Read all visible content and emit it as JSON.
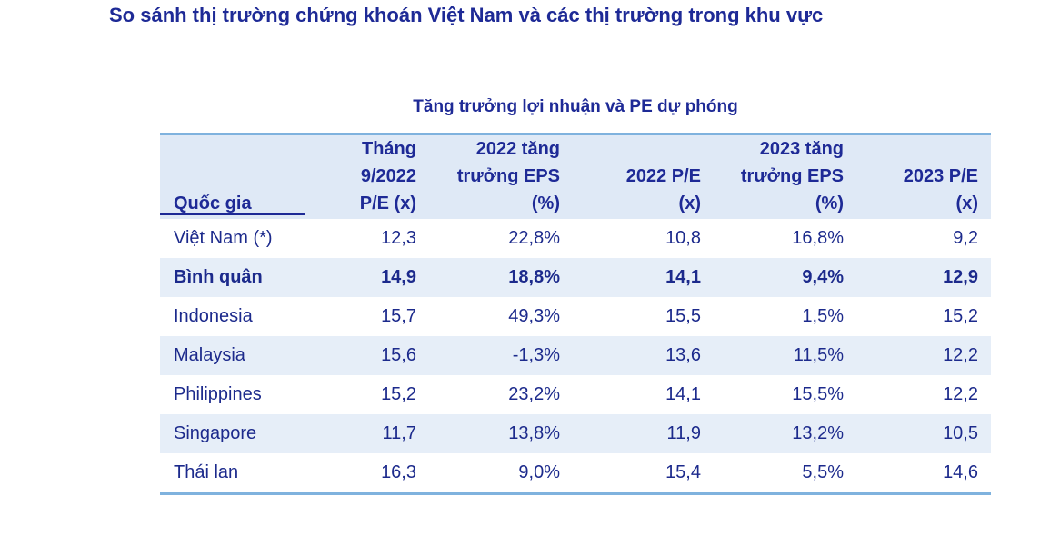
{
  "page": {
    "title": "So sánh thị trường chứng khoán Việt Nam và các thị trường trong khu vực"
  },
  "table": {
    "title": "Tăng trưởng lợi nhuận và PE dự phóng",
    "headers": [
      [
        "Quốc gia"
      ],
      [
        "Tháng",
        "9/2022",
        "P/E (x)"
      ],
      [
        "2022 tăng",
        "trưởng EPS",
        "(%)"
      ],
      [
        "2022 P/E",
        "(x)"
      ],
      [
        "2023 tăng",
        "trưởng EPS",
        "(%)"
      ],
      [
        "2023 P/E",
        "(x)"
      ]
    ],
    "rows": [
      {
        "country": "Việt Nam (*)",
        "pe_sep2022": "12,3",
        "eps_growth_2022": "22,8%",
        "pe_2022": "10,8",
        "eps_growth_2023": "16,8%",
        "pe_2023": "9,2"
      },
      {
        "country": "Bình quân",
        "pe_sep2022": "14,9",
        "eps_growth_2022": "18,8%",
        "pe_2022": "14,1",
        "eps_growth_2023": "9,4%",
        "pe_2023": "12,9"
      },
      {
        "country": "Indonesia",
        "pe_sep2022": "15,7",
        "eps_growth_2022": "49,3%",
        "pe_2022": "15,5",
        "eps_growth_2023": "1,5%",
        "pe_2023": "15,2"
      },
      {
        "country": "Malaysia",
        "pe_sep2022": "15,6",
        "eps_growth_2022": "-1,3%",
        "pe_2022": "13,6",
        "eps_growth_2023": "11,5%",
        "pe_2023": "12,2"
      },
      {
        "country": "Philippines",
        "pe_sep2022": "15,2",
        "eps_growth_2022": "23,2%",
        "pe_2022": "14,1",
        "eps_growth_2023": "15,5%",
        "pe_2023": "12,2"
      },
      {
        "country": "Singapore",
        "pe_sep2022": "11,7",
        "eps_growth_2022": "13,8%",
        "pe_2022": "11,9",
        "eps_growth_2023": "13,2%",
        "pe_2023": "10,5"
      },
      {
        "country": "Thái lan",
        "pe_sep2022": "16,3",
        "eps_growth_2022": "9,0%",
        "pe_2022": "15,4",
        "eps_growth_2023": "5,5%",
        "pe_2023": "14,6"
      }
    ]
  }
}
